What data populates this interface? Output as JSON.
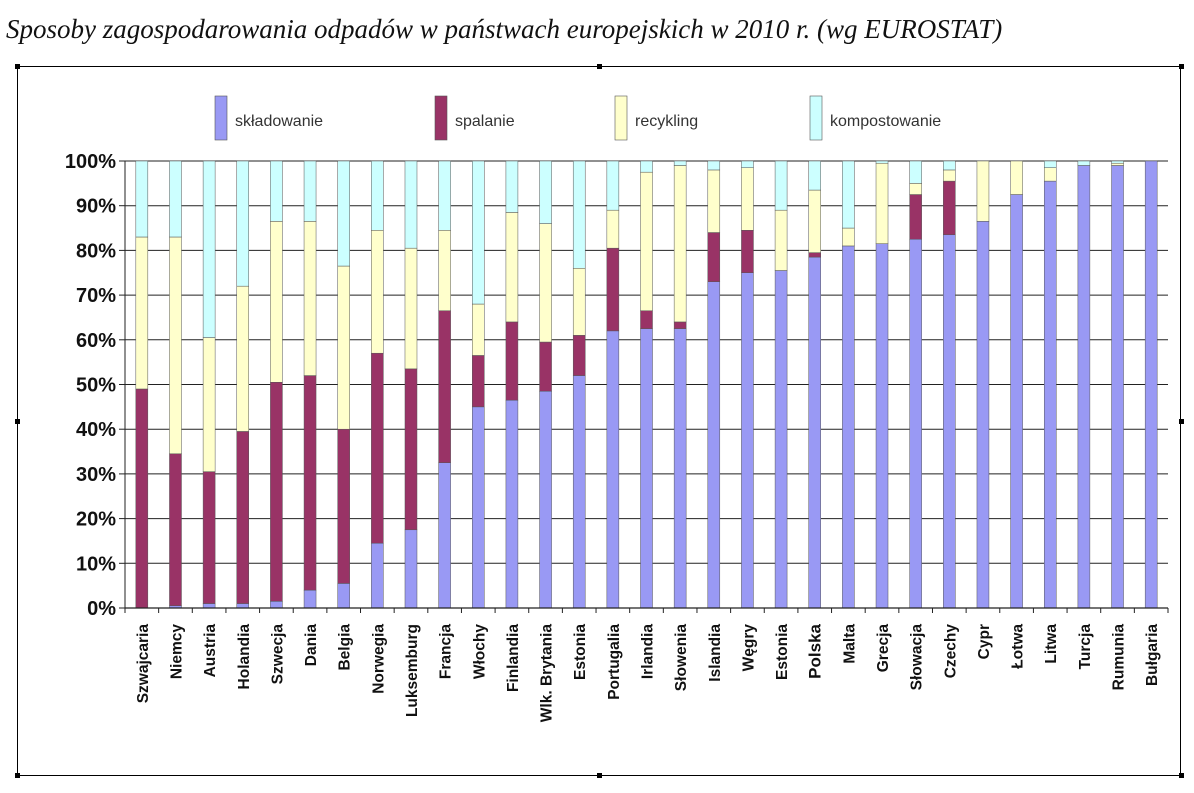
{
  "title": "Sposoby zagospodarowania odpadów w państwach europejskich w 2010 r. (wg EUROSTAT)",
  "chart_data": {
    "type": "bar",
    "stacked": true,
    "categories": [
      "Szwajcaria",
      "Niemcy",
      "Austria",
      "Holandia",
      "Szwecja",
      "Dania",
      "Belgia",
      "Norwegia",
      "Luksemburg",
      "Francja",
      "Włochy",
      "Finlandia",
      "Wlk. Brytania",
      "Estonia",
      "Portugalia",
      "Irlandia",
      "Słowenia",
      "Islandia",
      "Węgry",
      "Estonia",
      "Polska",
      "Malta",
      "Grecja",
      "Słowacja",
      "Czechy",
      "Cypr",
      "Łotwa",
      "Litwa",
      "Turcja",
      "Rumunia",
      "Bułgaria"
    ],
    "highlight_category": "Polska",
    "highlight_color": "#b01c1c",
    "series": [
      {
        "name": "składowanie",
        "color": "#9999f4",
        "values": [
          0,
          0.5,
          1,
          1,
          1.5,
          4,
          5.5,
          14.5,
          17.5,
          32.5,
          45,
          46.5,
          48.5,
          52,
          62,
          62.5,
          62.5,
          73,
          75,
          75.5,
          78.5,
          81,
          81.5,
          82.5,
          83.5,
          86.5,
          92.5,
          95.5,
          99,
          99,
          100
        ]
      },
      {
        "name": "spalanie",
        "color": "#993366",
        "values": [
          49,
          34,
          29.5,
          38.5,
          49,
          48,
          34.5,
          42.5,
          36,
          34,
          11.5,
          17.5,
          11,
          9,
          18.5,
          4,
          1.5,
          11,
          9.5,
          0,
          1,
          0,
          0,
          10,
          12,
          0,
          0,
          0,
          0,
          0,
          0
        ]
      },
      {
        "name": "recykling",
        "color": "#ffffcc",
        "values": [
          34,
          48.5,
          30,
          32.5,
          36,
          34.5,
          36.5,
          27.5,
          27,
          18,
          11.5,
          24.5,
          26.5,
          15,
          8.5,
          31,
          35,
          14,
          14,
          13.5,
          14,
          4,
          18,
          2.5,
          2.5,
          13.5,
          7.5,
          3,
          0,
          0.5,
          0
        ]
      },
      {
        "name": "kompostowanie",
        "color": "#ccffff",
        "values": [
          17,
          17,
          39.5,
          28,
          13.5,
          13.5,
          23.5,
          15.5,
          19.5,
          15.5,
          32,
          11.5,
          14,
          24,
          11,
          2.5,
          1,
          2,
          1.5,
          11,
          6.5,
          15,
          0.5,
          5,
          2,
          0,
          0,
          1.5,
          1,
          0.5,
          0
        ]
      }
    ],
    "yticks": [
      "0%",
      "10%",
      "20%",
      "30%",
      "40%",
      "50%",
      "60%",
      "70%",
      "80%",
      "90%",
      "100%"
    ],
    "ylim": [
      0,
      100
    ],
    "grid": true,
    "legend_position": "top"
  }
}
